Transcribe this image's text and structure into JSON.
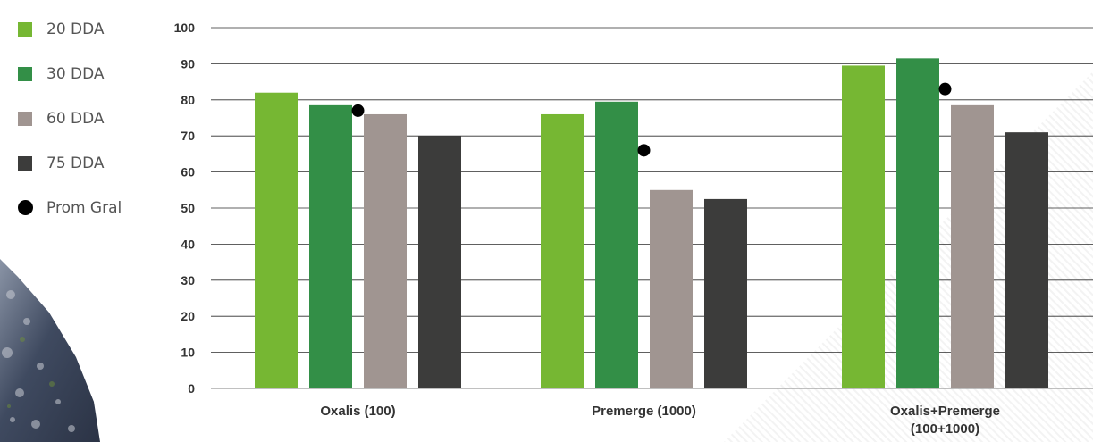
{
  "chart_data": {
    "type": "bar",
    "title": "",
    "xlabel": "",
    "ylabel": "",
    "ylim": [
      0,
      100
    ],
    "yticks": [
      0,
      10,
      20,
      30,
      40,
      50,
      60,
      70,
      80,
      90,
      100
    ],
    "grid": true,
    "legend_position": "left",
    "categories": [
      "Oxalis (100)",
      "Premerge (1000)",
      "Oxalis+Premerge\n(100+1000)"
    ],
    "series": [
      {
        "name": "20 DDA",
        "color": "#76b733",
        "values": [
          82,
          76,
          89.5
        ]
      },
      {
        "name": "30 DDA",
        "color": "#338f47",
        "values": [
          78.5,
          79.5,
          91.5
        ]
      },
      {
        "name": "60 DDA",
        "color": "#a09591",
        "values": [
          76,
          55,
          78.5
        ]
      },
      {
        "name": "75 DDA",
        "color": "#3c3c3b",
        "values": [
          70,
          52.5,
          71
        ]
      }
    ],
    "overlay": {
      "name": "Prom Gral",
      "type": "scatter",
      "color": "#000000",
      "values": [
        77,
        66,
        83
      ]
    }
  }
}
